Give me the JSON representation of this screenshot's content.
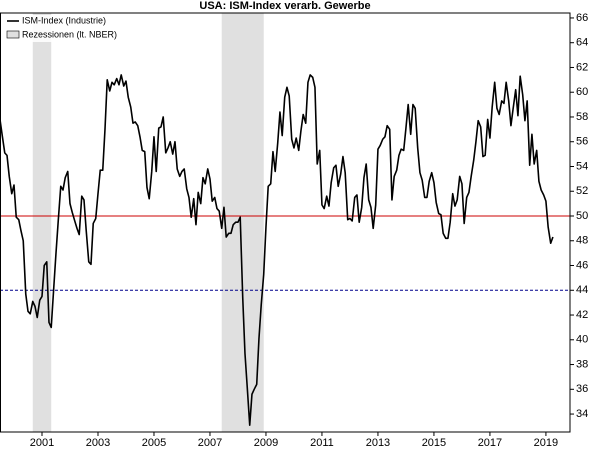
{
  "chart_data": {
    "type": "line",
    "title": "USA: ISM-Index verarb. Gewerbe",
    "xlim": [
      2000,
      2020.36
    ],
    "ylim": [
      32.55,
      66.4
    ],
    "yticks": [
      34,
      36,
      38,
      40,
      42,
      44,
      46,
      48,
      50,
      52,
      54,
      56,
      58,
      60,
      62,
      64,
      66
    ],
    "xticks": [
      {
        "value": 2001.5,
        "label": "2001"
      },
      {
        "value": 2003.5,
        "label": "2003"
      },
      {
        "value": 2005.5,
        "label": "2005"
      },
      {
        "value": 2007.5,
        "label": "2007"
      },
      {
        "value": 2009.5,
        "label": "2009"
      },
      {
        "value": 2011.5,
        "label": "2011"
      },
      {
        "value": 2013.5,
        "label": "2013"
      },
      {
        "value": 2015.5,
        "label": "2015"
      },
      {
        "value": 2017.5,
        "label": "2017"
      },
      {
        "value": 2019.5,
        "label": "2019"
      }
    ],
    "recession_label": "Rezessionen (lt. NBER)",
    "recession_color": "#e0e0e0",
    "recessions": [
      [
        2001.17,
        2001.83
      ],
      [
        2007.92,
        2009.42
      ]
    ],
    "reference_lines": [
      {
        "value": 50,
        "color": "#cc0000",
        "style": "solid"
      },
      {
        "value": 44,
        "color": "#00008b",
        "style": "dashed"
      }
    ],
    "x": [
      2000,
      2000.08,
      2000.17,
      2000.25,
      2000.33,
      2000.42,
      2000.5,
      2000.58,
      2000.67,
      2000.75,
      2000.83,
      2000.92,
      2001,
      2001.08,
      2001.17,
      2001.25,
      2001.33,
      2001.42,
      2001.5,
      2001.58,
      2001.67,
      2001.75,
      2001.83,
      2001.92,
      2002,
      2002.08,
      2002.17,
      2002.25,
      2002.33,
      2002.42,
      2002.5,
      2002.58,
      2002.67,
      2002.75,
      2002.83,
      2002.92,
      2003,
      2003.08,
      2003.17,
      2003.25,
      2003.33,
      2003.42,
      2003.5,
      2003.58,
      2003.67,
      2003.75,
      2003.83,
      2003.92,
      2004,
      2004.08,
      2004.17,
      2004.25,
      2004.33,
      2004.42,
      2004.5,
      2004.58,
      2004.67,
      2004.75,
      2004.83,
      2004.92,
      2005,
      2005.08,
      2005.17,
      2005.25,
      2005.33,
      2005.42,
      2005.5,
      2005.58,
      2005.67,
      2005.75,
      2005.83,
      2005.92,
      2006,
      2006.08,
      2006.17,
      2006.25,
      2006.33,
      2006.42,
      2006.5,
      2006.58,
      2006.67,
      2006.75,
      2006.83,
      2006.92,
      2007,
      2007.08,
      2007.17,
      2007.25,
      2007.33,
      2007.42,
      2007.5,
      2007.58,
      2007.67,
      2007.75,
      2007.83,
      2007.92,
      2008,
      2008.08,
      2008.17,
      2008.25,
      2008.33,
      2008.42,
      2008.5,
      2008.58,
      2008.67,
      2008.75,
      2008.83,
      2008.92,
      2009,
      2009.08,
      2009.17,
      2009.25,
      2009.33,
      2009.42,
      2009.5,
      2009.58,
      2009.67,
      2009.75,
      2009.83,
      2009.92,
      2010,
      2010.08,
      2010.17,
      2010.25,
      2010.33,
      2010.42,
      2010.5,
      2010.58,
      2010.67,
      2010.75,
      2010.83,
      2010.92,
      2011,
      2011.08,
      2011.17,
      2011.25,
      2011.33,
      2011.42,
      2011.5,
      2011.58,
      2011.67,
      2011.75,
      2011.83,
      2011.92,
      2012,
      2012.08,
      2012.17,
      2012.25,
      2012.33,
      2012.42,
      2012.5,
      2012.58,
      2012.67,
      2012.75,
      2012.83,
      2012.92,
      2013,
      2013.08,
      2013.17,
      2013.25,
      2013.33,
      2013.42,
      2013.5,
      2013.58,
      2013.67,
      2013.75,
      2013.83,
      2013.92,
      2014,
      2014.08,
      2014.17,
      2014.25,
      2014.33,
      2014.42,
      2014.5,
      2014.58,
      2014.67,
      2014.75,
      2014.83,
      2014.92,
      2015,
      2015.08,
      2015.17,
      2015.25,
      2015.33,
      2015.42,
      2015.5,
      2015.58,
      2015.67,
      2015.75,
      2015.83,
      2015.92,
      2016,
      2016.08,
      2016.17,
      2016.25,
      2016.33,
      2016.42,
      2016.5,
      2016.58,
      2016.67,
      2016.75,
      2016.83,
      2016.92,
      2017,
      2017.08,
      2017.17,
      2017.25,
      2017.33,
      2017.42,
      2017.5,
      2017.58,
      2017.67,
      2017.75,
      2017.83,
      2017.92,
      2018,
      2018.08,
      2018.17,
      2018.25,
      2018.33,
      2018.42,
      2018.5,
      2018.58,
      2018.67,
      2018.75,
      2018.83,
      2018.92,
      2019,
      2019.08,
      2019.17,
      2019.25,
      2019.33,
      2019.42,
      2019.5,
      2019.58,
      2019.67,
      2019.75
    ],
    "series": [
      {
        "name": "ISM-Index (Industrie)",
        "color": "#000000",
        "values": [
          57.8,
          56.5,
          55.1,
          54.9,
          53.2,
          51.8,
          52.5,
          49.9,
          49.7,
          48.8,
          48.0,
          43.7,
          42.3,
          42.1,
          43.1,
          42.7,
          41.8,
          43.2,
          43.5,
          46.0,
          46.3,
          41.4,
          41.0,
          44.2,
          47.0,
          49.6,
          52.4,
          52.1,
          53.1,
          53.6,
          51.0,
          50.3,
          49.6,
          49.0,
          48.5,
          51.6,
          51.3,
          48.8,
          46.3,
          46.1,
          49.4,
          49.8,
          51.8,
          53.7,
          53.7,
          57.0,
          61.0,
          60.1,
          60.8,
          60.6,
          61.1,
          60.6,
          61.4,
          60.5,
          60.9,
          59.6,
          58.8,
          57.5,
          57.6,
          57.3,
          56.4,
          55.3,
          55.2,
          52.3,
          51.4,
          53.6,
          56.4,
          53.6,
          57.1,
          57.2,
          58.0,
          55.1,
          55.5,
          56.0,
          55.0,
          56.0,
          53.8,
          53.2,
          53.6,
          53.8,
          52.2,
          51.5,
          49.9,
          51.4,
          49.3,
          51.9,
          51.0,
          53.1,
          52.6,
          53.8,
          53.0,
          51.2,
          51.5,
          50.6,
          50.4,
          49.0,
          50.7,
          48.3,
          48.6,
          48.6,
          49.3,
          49.5,
          49.5,
          49.9,
          43.4,
          38.9,
          36.2,
          33.1,
          35.6,
          36.0,
          36.4,
          40.1,
          42.8,
          45.3,
          49.1,
          52.4,
          52.6,
          55.2,
          53.6,
          55.9,
          58.4,
          56.5,
          59.6,
          60.4,
          59.7,
          56.2,
          55.5,
          56.3,
          55.3,
          56.9,
          58.2,
          57.5,
          60.8,
          61.4,
          61.2,
          60.4,
          54.2,
          55.3,
          50.9,
          50.6,
          51.6,
          50.8,
          52.7,
          53.9,
          54.1,
          52.4,
          53.4,
          54.8,
          53.5,
          49.7,
          49.8,
          49.6,
          51.5,
          51.7,
          49.5,
          50.7,
          53.1,
          54.2,
          51.3,
          50.7,
          49.0,
          50.9,
          55.4,
          55.7,
          56.2,
          56.4,
          57.3,
          57.0,
          51.3,
          53.2,
          53.7,
          54.9,
          55.4,
          55.3,
          57.1,
          59.0,
          56.6,
          59.0,
          58.7,
          55.5,
          53.5,
          52.9,
          51.5,
          51.5,
          52.8,
          53.5,
          52.7,
          51.1,
          50.2,
          50.1,
          48.6,
          48.2,
          48.2,
          49.5,
          51.8,
          50.8,
          51.3,
          53.2,
          52.6,
          49.4,
          51.5,
          51.9,
          53.2,
          54.5,
          56.0,
          57.7,
          57.2,
          54.8,
          54.9,
          57.8,
          56.3,
          58.8,
          60.8,
          58.7,
          58.2,
          59.3,
          59.1,
          60.8,
          59.3,
          57.3,
          58.7,
          60.2,
          58.1,
          61.3,
          59.8,
          57.7,
          59.3,
          54.1,
          56.6,
          54.2,
          55.3,
          52.8,
          52.1,
          51.7,
          51.2,
          49.1,
          47.8,
          48.3
        ]
      }
    ]
  }
}
